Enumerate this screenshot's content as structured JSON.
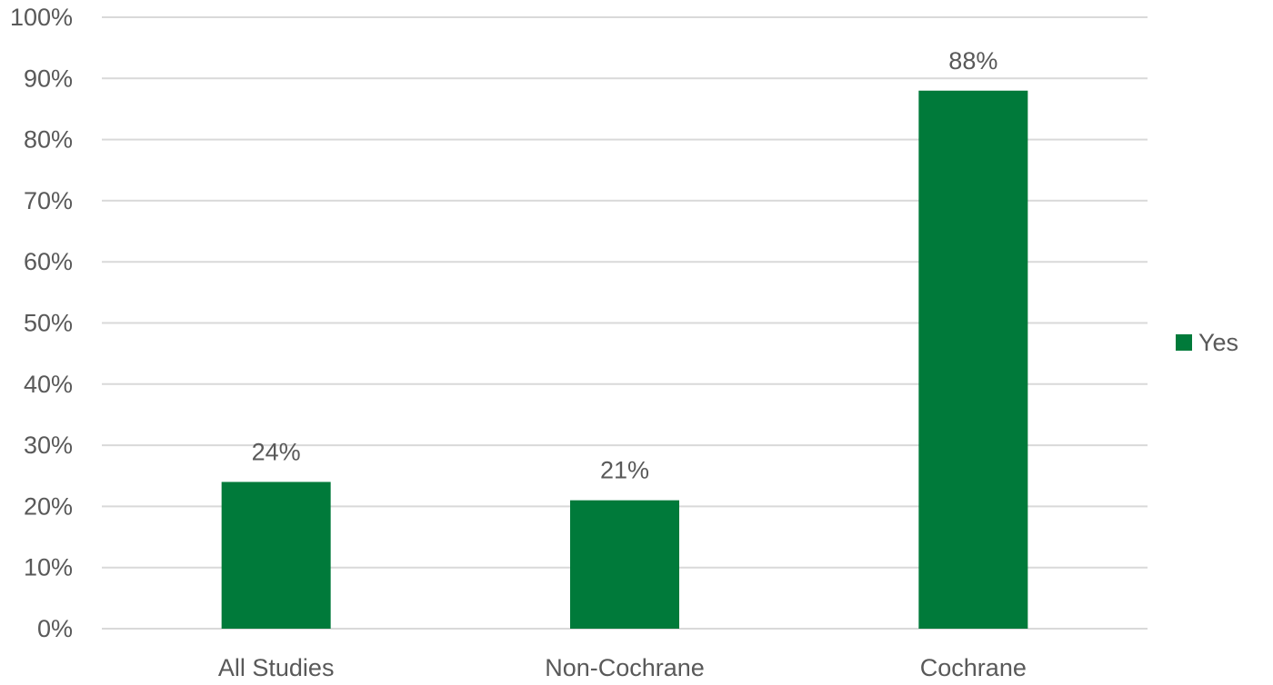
{
  "chart_data": {
    "type": "bar",
    "categories": [
      "All Studies",
      "Non-Cochrane",
      "Cochrane"
    ],
    "series": [
      {
        "name": "Yes",
        "values": [
          24,
          21,
          88
        ],
        "data_labels": [
          "24%",
          "21%",
          "88%"
        ],
        "color": "#007a3a"
      }
    ],
    "ylim": [
      0,
      100
    ],
    "yticks": [
      0,
      10,
      20,
      30,
      40,
      50,
      60,
      70,
      80,
      90,
      100
    ],
    "ytick_labels": [
      "0%",
      "10%",
      "20%",
      "30%",
      "40%",
      "50%",
      "60%",
      "70%",
      "80%",
      "90%",
      "100%"
    ],
    "grid": true,
    "legend_position": "right"
  }
}
